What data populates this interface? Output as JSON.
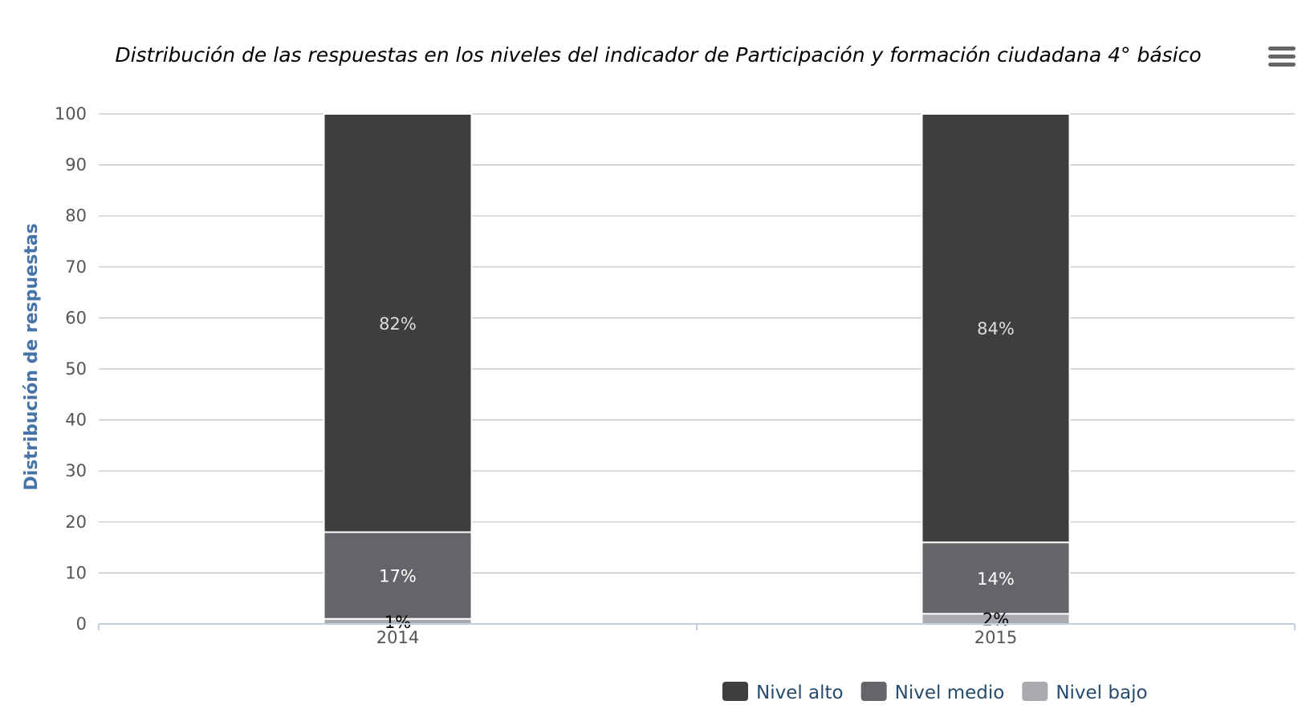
{
  "chart_data": {
    "type": "bar",
    "stacked": true,
    "title": "Distribución de las respuestas en los niveles del indicador de Participación y formación ciudadana 4° básico",
    "ylabel": "Distribución de respuestas",
    "xlabel": "",
    "ylim": [
      0,
      100
    ],
    "yticks": [
      0,
      10,
      20,
      30,
      40,
      50,
      60,
      70,
      80,
      90,
      100
    ],
    "categories": [
      "2014",
      "2015"
    ],
    "grid": true,
    "legend_position": "bottom-right",
    "series": [
      {
        "name": "Nivel bajo",
        "values": [
          1,
          2
        ],
        "labels": [
          "1%",
          "2%"
        ],
        "color": "#a8aaad",
        "label_color": "#000000"
      },
      {
        "name": "Nivel medio",
        "values": [
          17,
          14
        ],
        "labels": [
          "17%",
          "14%"
        ],
        "color": "#646568",
        "label_color": "#ffffff"
      },
      {
        "name": "Nivel alto",
        "values": [
          82,
          84
        ],
        "labels": [
          "82%",
          "84%"
        ],
        "color": "#3d3e40",
        "label_color": "#dddddd"
      }
    ],
    "legend_order": [
      "Nivel alto",
      "Nivel medio",
      "Nivel bajo"
    ]
  },
  "menu": {
    "icon": "hamburger-menu-icon"
  }
}
